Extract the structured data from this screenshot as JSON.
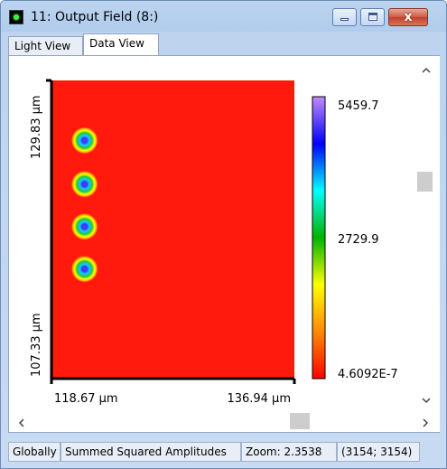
{
  "window": {
    "title": "11: Output Field (8:)",
    "close_glyph": "x"
  },
  "tabs": [
    {
      "label": "Light View",
      "active": false
    },
    {
      "label": "Data View",
      "active": true
    }
  ],
  "plot": {
    "x_min_label": "118.67 µm",
    "x_max_label": "136.94 µm",
    "y_max_label": "129.83 µm",
    "y_min_label": "107.33 µm",
    "field_color": "#ff1a0d",
    "spot_positions_x_um": 121.1,
    "spots_y_um": [
      125.3,
      122.0,
      118.8,
      115.6
    ],
    "colorbar": {
      "max_label": "5459.7",
      "mid_label": "2729.9",
      "min_label": "4.6092E-7",
      "colors": [
        "#ff0000",
        "#ff8a00",
        "#ffff00",
        "#00b400",
        "#00ffff",
        "#0000ff",
        "#c28cff"
      ]
    }
  },
  "scrollbars": {
    "up_icon": "caret-up-icon",
    "down_icon": "caret-down-icon",
    "left_icon": "caret-left-icon",
    "right_icon": "caret-right-icon"
  },
  "status": {
    "scope": "Globally",
    "quantity": "Summed Squared Amplitudes",
    "zoom": "Zoom: 2.3538",
    "size": "(3154; 3154)"
  }
}
